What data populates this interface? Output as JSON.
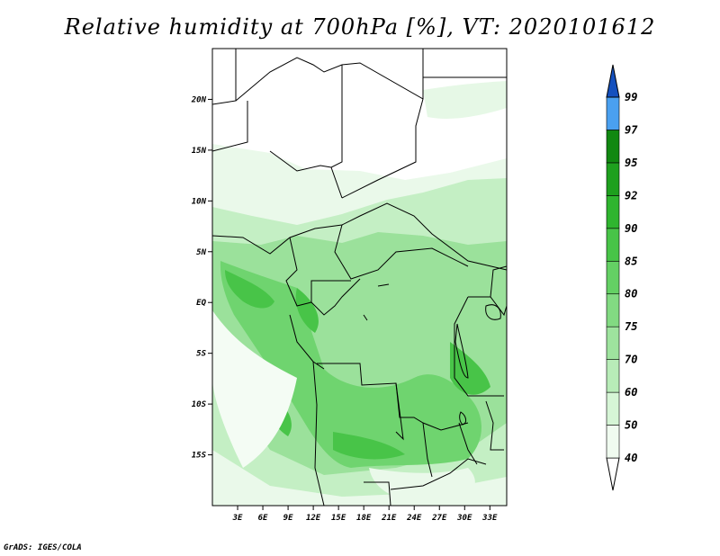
{
  "title": "Relative humidity at 700hPa [%], VT: 2020101612",
  "footer": "GrADS: IGES/COLA",
  "map": {
    "lon_range": [
      0,
      35
    ],
    "lat_range": [
      -20,
      25
    ],
    "lon_ticks": [
      "3E",
      "6E",
      "9E",
      "12E",
      "15E",
      "18E",
      "21E",
      "24E",
      "27E",
      "30E",
      "33E"
    ],
    "lat_ticks": [
      "20N",
      "15N",
      "10N",
      "5N",
      "EQ",
      "5S",
      "10S",
      "15S"
    ]
  },
  "colorbar": {
    "levels": [
      "40",
      "50",
      "60",
      "70",
      "75",
      "80",
      "85",
      "90",
      "92",
      "95",
      "97",
      "99"
    ],
    "colors": [
      "#f0fbf0",
      "#d6f5d6",
      "#b8ecb8",
      "#9ee39e",
      "#82da82",
      "#64d064",
      "#48c448",
      "#2fb52f",
      "#1ea01e",
      "#118811",
      "#4aa0f0",
      "#2a78dc",
      "#1450be"
    ]
  }
}
